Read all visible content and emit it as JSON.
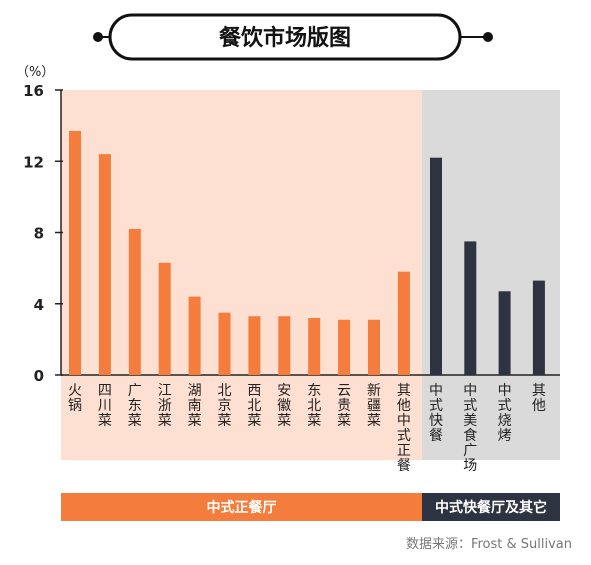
{
  "title": "餐饮市场版图",
  "source": "数据来源：Frost & Sullivan",
  "colors": {
    "orange": "#f47c3c",
    "dark": "#2d3340",
    "orange_bg": "#fde0d2",
    "gray_bg": "#dadada",
    "band_orange": "#f47c3c",
    "band_dark": "#2d3340"
  },
  "chart_data": {
    "type": "bar",
    "ylabel": "（%）",
    "ylim": [
      0,
      16
    ],
    "yticks": [
      "0",
      "4",
      "8",
      "12",
      "16"
    ],
    "categories": [
      "火锅",
      "四川菜",
      "广东菜",
      "江浙菜",
      "湖南菜",
      "北京菜",
      "西北菜",
      "安徽菜",
      "东北菜",
      "云贵菜",
      "新疆菜",
      "其他中式正餐",
      "中式快餐",
      "中式美食广场",
      "中式烧烤",
      "其他"
    ],
    "values": [
      13.7,
      12.4,
      8.2,
      6.3,
      4.4,
      3.5,
      3.3,
      3.3,
      3.2,
      3.1,
      3.1,
      5.8,
      12.2,
      7.5,
      4.7,
      5.3
    ],
    "groups": [
      {
        "name": "中式正餐厅",
        "count": 12,
        "color": "orange"
      },
      {
        "name": "中式快餐厅及其它",
        "count": 4,
        "color": "dark"
      }
    ]
  }
}
